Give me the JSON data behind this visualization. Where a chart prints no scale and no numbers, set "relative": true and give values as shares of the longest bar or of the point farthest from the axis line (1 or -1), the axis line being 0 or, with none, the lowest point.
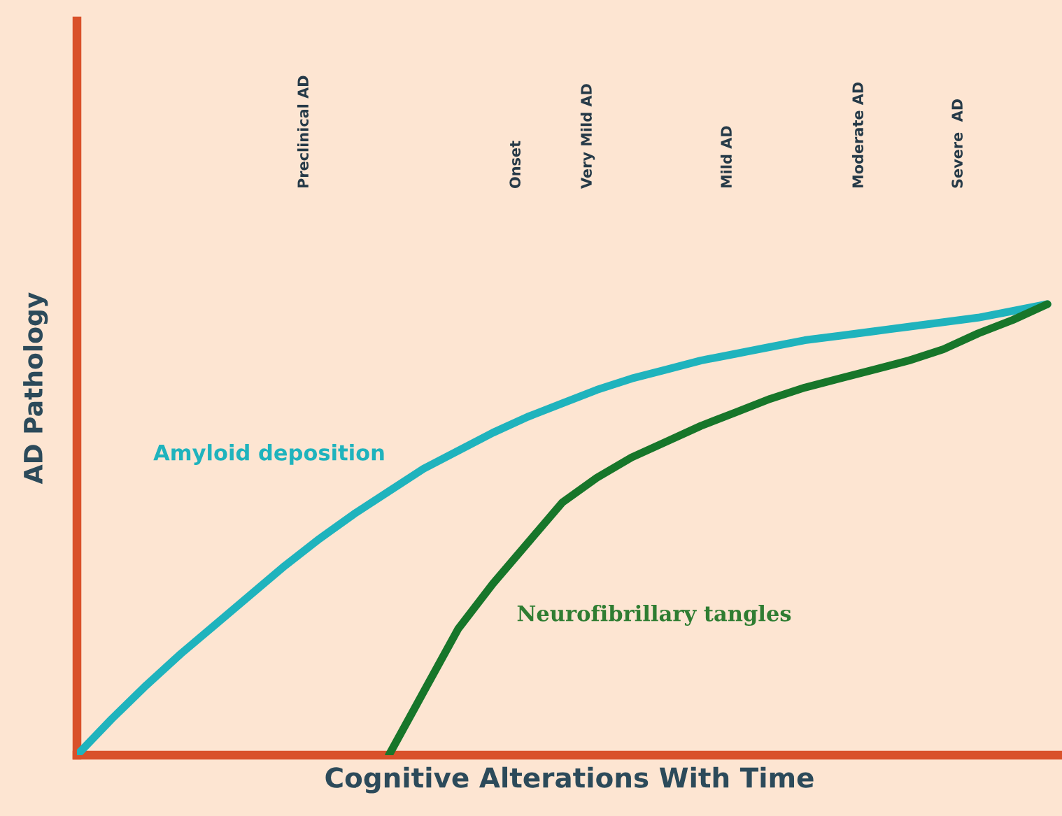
{
  "chart_data": {
    "type": "line",
    "relative": true,
    "xlabel": "Cognitive Alterations With Time",
    "ylabel": "AD Pathology",
    "categories": [
      null,
      null,
      null,
      null,
      null,
      null,
      null,
      null,
      null,
      null,
      null,
      null,
      null,
      null,
      null,
      null,
      null,
      null,
      null,
      null,
      null,
      null,
      null,
      null,
      null,
      null,
      null,
      null,
      null
    ],
    "series": [
      {
        "name": "Amyloid deposition",
        "color": "#1fb3bd",
        "values": [
          0,
          0.08,
          0.155,
          0.225,
          0.29,
          0.355,
          0.42,
          0.48,
          0.535,
          0.585,
          0.635,
          0.675,
          0.715,
          0.75,
          0.78,
          0.81,
          0.835,
          0.855,
          0.875,
          0.89,
          0.905,
          0.92,
          0.93,
          0.94,
          0.95,
          0.96,
          0.97,
          0.985,
          1.0
        ]
      },
      {
        "name": "Neurofibrillary tangles",
        "color": "#17762a",
        "values": [
          null,
          null,
          null,
          null,
          null,
          null,
          null,
          null,
          null,
          0,
          0.14,
          0.28,
          0.38,
          0.47,
          0.56,
          0.615,
          0.66,
          0.695,
          0.73,
          0.76,
          0.79,
          0.815,
          0.835,
          0.855,
          0.875,
          0.9,
          0.935,
          0.965,
          1.0
        ]
      }
    ],
    "annotations": [
      "Preclinical AD",
      "Onset",
      "Very Mild AD",
      "Mild AD",
      "Moderate AD",
      "Severe  AD"
    ],
    "legend": false,
    "marker": "none",
    "line_style": "solid"
  }
}
